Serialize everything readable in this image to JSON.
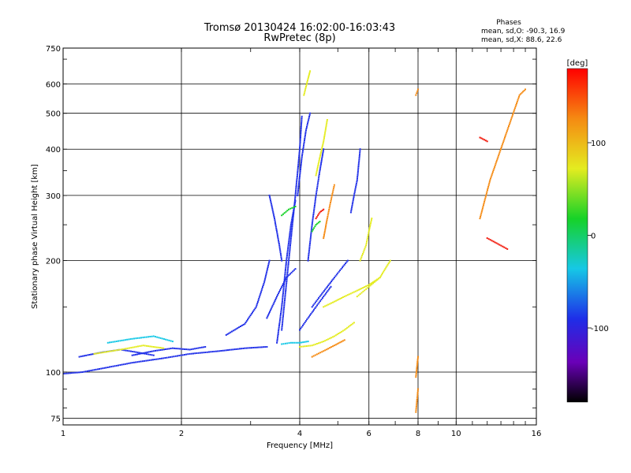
{
  "chart_data": {
    "type": "scatter",
    "title": "Tromsø 20130424 16:02:00-16:03:43",
    "subtitle": "RwPretec (8p)",
    "xlabel": "Frequency [MHz]",
    "ylabel": "Stationary phase Virtual Height [km]",
    "x_scale": "log",
    "y_scale": "log",
    "xlim": [
      1,
      16
    ],
    "ylim": [
      72,
      750
    ],
    "x_ticks": [
      1,
      2,
      4,
      6,
      8,
      10,
      16
    ],
    "x_tick_labels": [
      "1",
      "2",
      "4",
      "6",
      "8",
      "10",
      "16"
    ],
    "y_ticks": [
      75,
      100,
      200,
      300,
      400,
      500,
      600,
      750
    ],
    "y_tick_labels": [
      "75",
      "100",
      "200",
      "300",
      "400",
      "500",
      "600",
      "750"
    ],
    "grid": true,
    "stats_header": "Phases",
    "stats": [
      "mean, sd,O: -90.3, 16.9",
      "mean, sd,X:  88.6, 22.6"
    ],
    "colorbar": {
      "label": "[deg]",
      "ticks": [
        100,
        0,
        -100
      ],
      "tick_labels": [
        "100",
        "0",
        "-100"
      ],
      "range": [
        -180,
        180
      ],
      "colormap": "rainbow"
    },
    "series": [
      {
        "color": "#1e2ee8",
        "segments": [
          {
            "x": [
              1.0,
              1.12,
              1.3,
              1.5,
              1.8,
              2.1,
              2.5,
              2.9,
              3.3
            ],
            "y": [
              99,
              100,
              103,
              106,
              109,
              112,
              114,
              116,
              117
            ]
          },
          {
            "x": [
              1.1,
              1.25,
              1.4,
              1.55,
              1.7
            ],
            "y": [
              110,
              113,
              115,
              113,
              111
            ]
          },
          {
            "x": [
              1.5,
              1.7,
              1.9,
              2.1,
              2.3
            ],
            "y": [
              111,
              114,
              116,
              115,
              117
            ]
          },
          {
            "x": [
              2.6,
              2.9,
              3.1,
              3.25,
              3.35
            ],
            "y": [
              126,
              135,
              150,
              175,
              200
            ]
          },
          {
            "x": [
              3.35,
              3.45,
              3.55,
              3.6
            ],
            "y": [
              300,
              260,
              220,
              200
            ]
          },
          {
            "x": [
              3.5,
              3.6,
              3.7,
              3.8,
              3.9
            ],
            "y": [
              120,
              150,
              200,
              250,
              290
            ]
          },
          {
            "x": [
              3.6,
              3.75,
              3.9,
              4.0,
              4.05
            ],
            "y": [
              130,
              200,
              300,
              400,
              490
            ]
          },
          {
            "x": [
              3.95,
              4.05,
              4.15,
              4.25
            ],
            "y": [
              300,
              380,
              450,
              500
            ]
          },
          {
            "x": [
              4.0,
              4.2,
              4.4,
              4.6,
              4.8
            ],
            "y": [
              130,
              140,
              150,
              160,
              170
            ]
          },
          {
            "x": [
              4.2,
              4.3,
              4.4,
              4.5,
              4.6
            ],
            "y": [
              200,
              250,
              300,
              350,
              400
            ]
          },
          {
            "x": [
              4.3,
              4.5,
              4.7,
              4.9,
              5.1,
              5.3
            ],
            "y": [
              150,
              160,
              170,
              180,
              190,
              200
            ]
          },
          {
            "x": [
              3.3,
              3.5,
              3.7,
              3.9
            ],
            "y": [
              140,
              160,
              180,
              190
            ]
          },
          {
            "x": [
              5.4,
              5.5,
              5.6,
              5.7
            ],
            "y": [
              270,
              300,
              330,
              400
            ]
          }
        ]
      },
      {
        "color": "#e4ec20",
        "segments": [
          {
            "x": [
              4.0,
              4.3,
              4.6,
              4.9,
              5.2,
              5.5
            ],
            "y": [
              117,
              118,
              121,
              125,
              130,
              136
            ]
          },
          {
            "x": [
              4.6,
              4.9,
              5.2,
              5.6,
              6.0,
              6.4
            ],
            "y": [
              150,
              155,
              160,
              166,
              172,
              180
            ]
          },
          {
            "x": [
              5.6,
              5.8,
              6.0,
              6.2,
              6.4,
              6.6,
              6.8
            ],
            "y": [
              160,
              165,
              170,
              175,
              180,
              190,
              200
            ]
          },
          {
            "x": [
              4.4,
              4.5,
              4.6,
              4.7
            ],
            "y": [
              340,
              380,
              420,
              480
            ]
          },
          {
            "x": [
              4.1,
              4.15,
              4.2,
              4.25
            ],
            "y": [
              560,
              590,
              620,
              650
            ]
          },
          {
            "x": [
              5.7,
              5.9,
              6.0,
              6.1
            ],
            "y": [
              200,
              220,
              240,
              260
            ]
          },
          {
            "x": [
              1.2,
              1.4,
              1.6,
              1.8
            ],
            "y": [
              112,
              115,
              118,
              116
            ]
          }
        ]
      },
      {
        "color": "#f58a12",
        "segments": [
          {
            "x": [
              4.3,
              4.6,
              4.9,
              5.2
            ],
            "y": [
              110,
              114,
              118,
              122
            ]
          },
          {
            "x": [
              4.6,
              4.7,
              4.8,
              4.9
            ],
            "y": [
              230,
              260,
              290,
              320
            ]
          },
          {
            "x": [
              7.9,
              8.0
            ],
            "y": [
              560,
              580
            ]
          },
          {
            "x": [
              7.9,
              8.0
            ],
            "y": [
              78,
              90
            ]
          },
          {
            "x": [
              7.9,
              8.0
            ],
            "y": [
              97,
              110
            ]
          },
          {
            "x": [
              11.5,
              12.2,
              14.5,
              15.0
            ],
            "y": [
              260,
              330,
              560,
              580
            ]
          }
        ]
      },
      {
        "color": "#f21a0c",
        "segments": [
          {
            "x": [
              4.4,
              4.5,
              4.6
            ],
            "y": [
              260,
              270,
              275
            ]
          },
          {
            "x": [
              11.5,
              12.0
            ],
            "y": [
              430,
              420
            ]
          },
          {
            "x": [
              12.0,
              13.5
            ],
            "y": [
              230,
              215
            ]
          }
        ]
      },
      {
        "color": "#16d228",
        "segments": [
          {
            "x": [
              3.6,
              3.75,
              3.9
            ],
            "y": [
              265,
              275,
              280
            ]
          },
          {
            "x": [
              4.3,
              4.4,
              4.5
            ],
            "y": [
              240,
              250,
              255
            ]
          }
        ]
      },
      {
        "color": "#16c8e6",
        "segments": [
          {
            "x": [
              1.3,
              1.5,
              1.7,
              1.9
            ],
            "y": [
              120,
              123,
              125,
              121
            ]
          },
          {
            "x": [
              3.6,
              3.8,
              4.0,
              4.2
            ],
            "y": [
              119,
              120,
              120,
              121
            ]
          }
        ]
      }
    ]
  }
}
